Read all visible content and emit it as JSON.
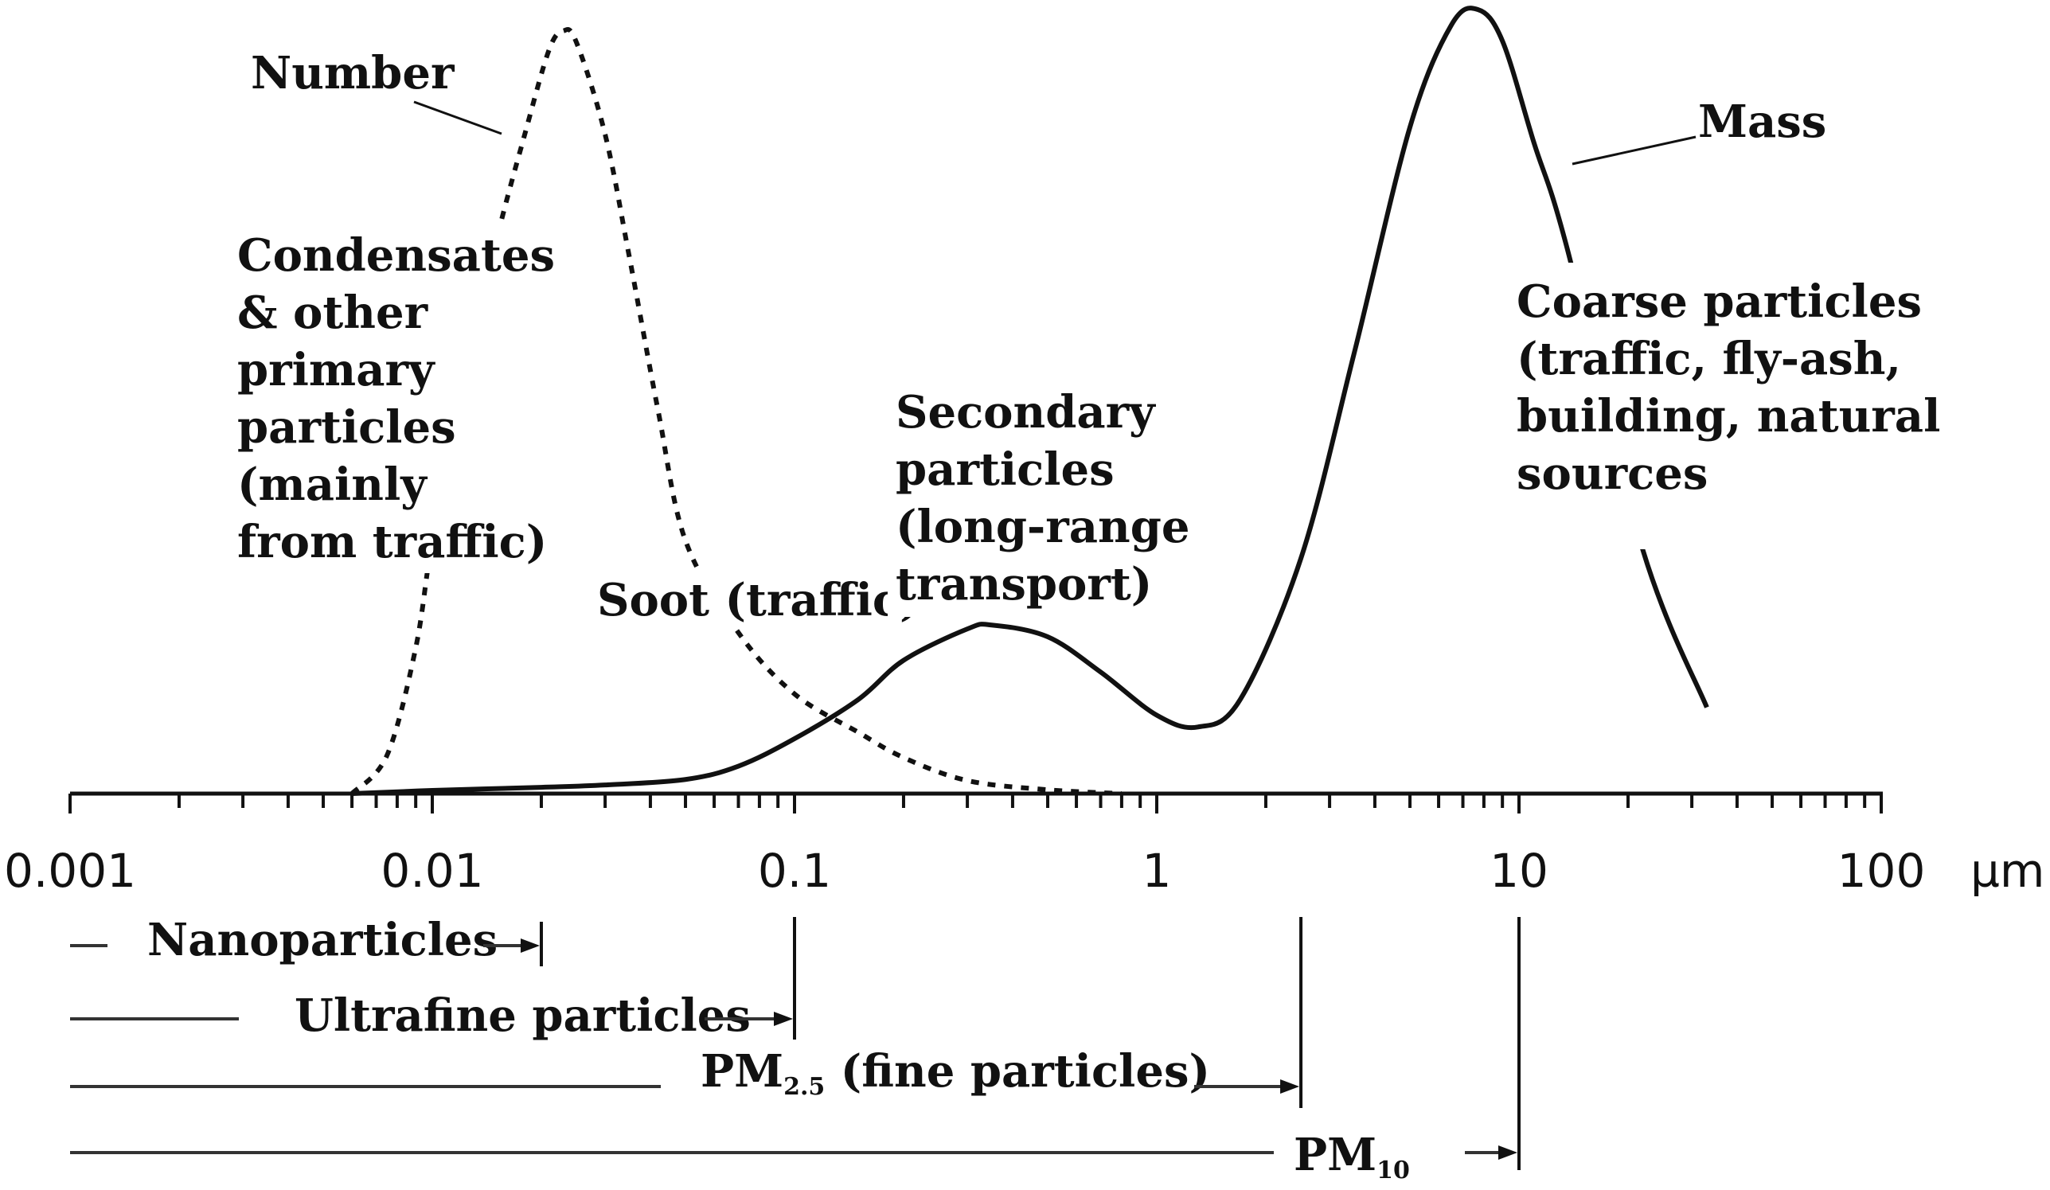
{
  "chart_data": {
    "type": "line",
    "title": "",
    "xlabel": "",
    "ylabel": "",
    "x_scale": "log",
    "xlim": [
      0.001,
      100
    ],
    "x_ticks": [
      {
        "value": 0.001,
        "label": "0.001"
      },
      {
        "value": 0.01,
        "label": "0.01"
      },
      {
        "value": 0.1,
        "label": "0.1"
      },
      {
        "value": 1,
        "label": "1"
      },
      {
        "value": 10,
        "label": "10"
      },
      {
        "value": 100,
        "label": "100"
      }
    ],
    "x_unit": "µm",
    "series": [
      {
        "name": "Number",
        "style": "dotted",
        "points": [
          {
            "x": 0.006,
            "y": 0.0
          },
          {
            "x": 0.0075,
            "y": 0.05
          },
          {
            "x": 0.009,
            "y": 0.19
          },
          {
            "x": 0.01,
            "y": 0.33
          },
          {
            "x": 0.012,
            "y": 0.52
          },
          {
            "x": 0.015,
            "y": 0.72
          },
          {
            "x": 0.018,
            "y": 0.86
          },
          {
            "x": 0.021,
            "y": 0.97
          },
          {
            "x": 0.023,
            "y": 0.995
          },
          {
            "x": 0.025,
            "y": 0.98
          },
          {
            "x": 0.03,
            "y": 0.86
          },
          {
            "x": 0.035,
            "y": 0.7
          },
          {
            "x": 0.042,
            "y": 0.5
          },
          {
            "x": 0.05,
            "y": 0.33
          },
          {
            "x": 0.07,
            "y": 0.21
          },
          {
            "x": 0.1,
            "y": 0.13
          },
          {
            "x": 0.15,
            "y": 0.08
          },
          {
            "x": 0.2,
            "y": 0.047
          },
          {
            "x": 0.3,
            "y": 0.017
          },
          {
            "x": 0.5,
            "y": 0.005
          },
          {
            "x": 0.8,
            "y": 0.0
          }
        ]
      },
      {
        "name": "Mass",
        "style": "solid",
        "points": [
          {
            "x": 0.006,
            "y": 0.0
          },
          {
            "x": 0.01,
            "y": 0.004
          },
          {
            "x": 0.02,
            "y": 0.008
          },
          {
            "x": 0.03,
            "y": 0.011
          },
          {
            "x": 0.05,
            "y": 0.018
          },
          {
            "x": 0.07,
            "y": 0.035
          },
          {
            "x": 0.1,
            "y": 0.07
          },
          {
            "x": 0.15,
            "y": 0.12
          },
          {
            "x": 0.2,
            "y": 0.17
          },
          {
            "x": 0.3,
            "y": 0.21
          },
          {
            "x": 0.35,
            "y": 0.215
          },
          {
            "x": 0.5,
            "y": 0.2
          },
          {
            "x": 0.7,
            "y": 0.155
          },
          {
            "x": 1.0,
            "y": 0.1
          },
          {
            "x": 1.3,
            "y": 0.085
          },
          {
            "x": 1.7,
            "y": 0.12
          },
          {
            "x": 2.5,
            "y": 0.3
          },
          {
            "x": 3.5,
            "y": 0.56
          },
          {
            "x": 5.0,
            "y": 0.85
          },
          {
            "x": 6.5,
            "y": 0.98
          },
          {
            "x": 7.7,
            "y": 1.0
          },
          {
            "x": 9.0,
            "y": 0.96
          },
          {
            "x": 11.0,
            "y": 0.83
          },
          {
            "x": 13.5,
            "y": 0.7
          },
          {
            "x": 22.0,
            "y": 0.31
          },
          {
            "x": 33.0,
            "y": 0.11
          }
        ]
      }
    ],
    "annotations": [
      {
        "label": "Number"
      },
      {
        "label": "Mass"
      },
      {
        "lines": [
          "Condensates",
          "& other",
          "primary",
          "particles",
          "(mainly",
          "from traffic)"
        ]
      },
      {
        "lines": [
          "Soot (traffic)"
        ]
      },
      {
        "lines": [
          "Secondary",
          "particles",
          "(long-range",
          "transport)"
        ]
      },
      {
        "lines": [
          "Coarse particles",
          "(traffic, fly-ash,",
          "building, natural",
          "sources"
        ]
      }
    ],
    "size_ranges": [
      {
        "label": "Nanoparticles",
        "from": 0.001,
        "to": 0.02
      },
      {
        "label": "Ultrafine particles",
        "from": 0.001,
        "to": 0.1
      },
      {
        "label": "PM",
        "subscript": "2.5",
        "suffix": " (fine particles)",
        "from": 0.001,
        "to": 2.5
      },
      {
        "label": "PM",
        "subscript": "10",
        "suffix": "",
        "from": 0.001,
        "to": 10
      }
    ]
  }
}
